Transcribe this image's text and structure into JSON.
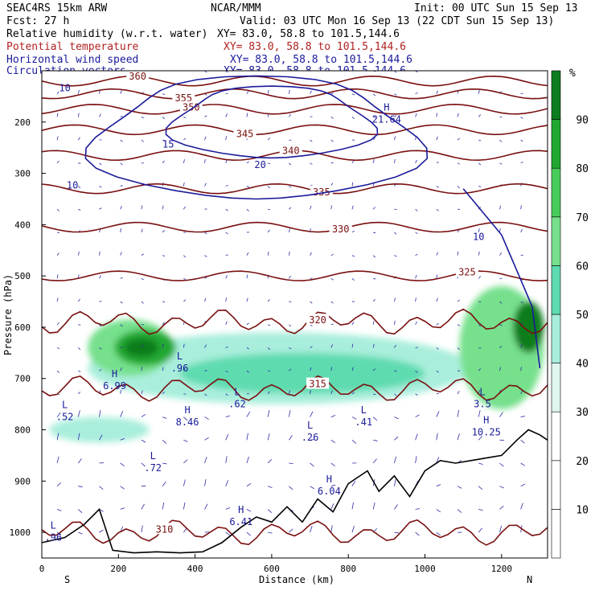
{
  "header": {
    "left_line1": "SEAC4RS 15km ARW",
    "center_line1": "NCAR/MMM",
    "right_line1": "Init: 00 UTC Sun 15 Sep 13",
    "left_line2": "Fcst:   27 h",
    "right_line2": "Valid: 03 UTC Mon 16 Sep 13 (22 CDT Sun 15 Sep 13)"
  },
  "fields": [
    {
      "name": "Relative humidity (w.r.t. water)",
      "xy": "XY=  83.0, 58.8 to 101.5,144.6",
      "color": "#000000"
    },
    {
      "name": "Potential temperature",
      "xy": "XY=  83.0, 58.8 to 101.5,144.6",
      "color": "#b22222"
    },
    {
      "name": "Horizontal wind speed",
      "xy": "XY=  83.0, 58.8 to 101.5,144.6",
      "color": "#1a1a9a"
    },
    {
      "name": "Circulation vectors",
      "xy": "XY=  83.0, 58.8 to 101.5,144.6",
      "color": "#1a1a9a"
    }
  ],
  "colorbar": {
    "unit": "%",
    "ticks": [
      "10",
      "20",
      "30",
      "40",
      "50",
      "60",
      "70",
      "80",
      "90"
    ],
    "colors": [
      "#ffffff",
      "#ffffff",
      "#ffffff",
      "#dff7ef",
      "#a9eedc",
      "#5edbb0",
      "#76e08c",
      "#47cc5a",
      "#20a832",
      "#0b7d1e"
    ]
  },
  "chart_data": {
    "type": "heatmap",
    "xlabel": "Distance (km)",
    "ylabel": "Pressure (hPa)",
    "xlim": [
      0,
      1320
    ],
    "ylim": [
      1050,
      100
    ],
    "xticks": [
      "0",
      "200",
      "400",
      "600",
      "800",
      "1000",
      "1200"
    ],
    "yticks": [
      "200",
      "300",
      "400",
      "500",
      "600",
      "700",
      "800",
      "900",
      "1000"
    ],
    "x_end_labels": {
      "left": "S",
      "right": "N"
    },
    "humidity_blobs": [
      {
        "x": 230,
        "p": 640,
        "rx": 110,
        "rp": 55,
        "level": 60
      },
      {
        "x": 270,
        "p": 640,
        "rx": 80,
        "rp": 35,
        "level": 80
      },
      {
        "x": 260,
        "p": 640,
        "rx": 45,
        "rp": 18,
        "level": 90
      },
      {
        "x": 620,
        "p": 680,
        "rx": 500,
        "rp": 70,
        "level": 40
      },
      {
        "x": 680,
        "p": 690,
        "rx": 320,
        "rp": 40,
        "level": 50
      },
      {
        "x": 1200,
        "p": 640,
        "rx": 110,
        "rp": 120,
        "level": 60
      },
      {
        "x": 1270,
        "p": 600,
        "rx": 40,
        "rp": 50,
        "level": 90
      },
      {
        "x": 150,
        "p": 800,
        "rx": 130,
        "rp": 25,
        "level": 40
      }
    ],
    "theta_contours": [
      {
        "label": "360",
        "p": 120,
        "label_x": 250
      },
      {
        "label": "355",
        "p": 145,
        "label_x": 370
      },
      {
        "label": "350",
        "p": 175,
        "label_x": 390
      },
      {
        "label": "345",
        "p": 215,
        "label_x": 530
      },
      {
        "label": "340",
        "p": 265,
        "label_x": 650
      },
      {
        "label": "335",
        "p": 330,
        "label_x": 730
      },
      {
        "label": "330",
        "p": 405,
        "label_x": 780
      },
      {
        "label": "325",
        "p": 500,
        "label_x": 1110
      },
      {
        "label": "320",
        "p": 590,
        "label_x": 720
      },
      {
        "label": "315",
        "p": 720,
        "label_x": 720
      },
      {
        "label": "310",
        "p": 1000,
        "label_x": 320
      }
    ],
    "wind_labels": [
      {
        "label": "10",
        "x": 60,
        "p": 140
      },
      {
        "label": "15",
        "x": 330,
        "p": 250
      },
      {
        "label": "20",
        "x": 570,
        "p": 290
      },
      {
        "label": "10",
        "x": 80,
        "p": 330
      },
      {
        "label": "10",
        "x": 1140,
        "p": 430
      }
    ],
    "extrema": [
      {
        "type": "H",
        "value": "21.64",
        "x": 900,
        "p": 190
      },
      {
        "type": "H",
        "value": "6.99",
        "x": 190,
        "p": 710
      },
      {
        "type": "L",
        "value": ".96",
        "x": 360,
        "p": 675
      },
      {
        "type": "L",
        "value": ".52",
        "x": 60,
        "p": 770
      },
      {
        "type": "H",
        "value": "8.46",
        "x": 380,
        "p": 780
      },
      {
        "type": "L",
        "value": ".62",
        "x": 510,
        "p": 745
      },
      {
        "type": "L",
        "value": ".26",
        "x": 700,
        "p": 810
      },
      {
        "type": "L",
        "value": ".41",
        "x": 840,
        "p": 780
      },
      {
        "type": "L",
        "value": ".72",
        "x": 290,
        "p": 870
      },
      {
        "type": "H",
        "value": "6.04",
        "x": 750,
        "p": 915
      },
      {
        "type": "H",
        "value": "6.41",
        "x": 520,
        "p": 975
      },
      {
        "type": "L",
        "value": ".96",
        "x": 30,
        "p": 1005
      },
      {
        "type": "H",
        "value": "10.25",
        "x": 1160,
        "p": 800
      },
      {
        "type": "L",
        "value": "3.5",
        "x": 1150,
        "p": 745
      }
    ],
    "terrain": [
      [
        0,
        1020
      ],
      [
        60,
        1010
      ],
      [
        110,
        985
      ],
      [
        150,
        955
      ],
      [
        185,
        1035
      ],
      [
        240,
        1040
      ],
      [
        300,
        1038
      ],
      [
        360,
        1040
      ],
      [
        420,
        1038
      ],
      [
        470,
        1020
      ],
      [
        520,
        990
      ],
      [
        560,
        970
      ],
      [
        600,
        980
      ],
      [
        640,
        950
      ],
      [
        680,
        980
      ],
      [
        720,
        935
      ],
      [
        760,
        960
      ],
      [
        800,
        905
      ],
      [
        850,
        880
      ],
      [
        880,
        920
      ],
      [
        920,
        890
      ],
      [
        960,
        930
      ],
      [
        1000,
        880
      ],
      [
        1040,
        860
      ],
      [
        1080,
        865
      ],
      [
        1120,
        860
      ],
      [
        1160,
        855
      ],
      [
        1200,
        850
      ],
      [
        1240,
        820
      ],
      [
        1270,
        800
      ],
      [
        1300,
        810
      ],
      [
        1320,
        820
      ]
    ]
  }
}
